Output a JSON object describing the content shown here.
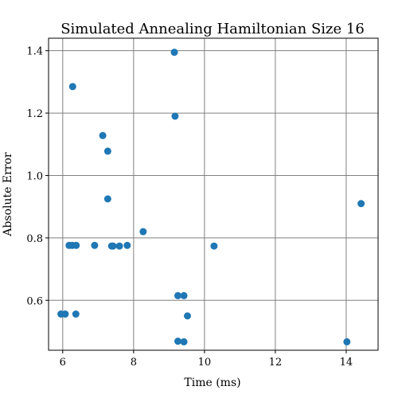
{
  "chart_data": {
    "type": "scatter",
    "title": "Simulated Annealing Hamiltonian Size 16",
    "xlabel": "Time (ms)",
    "ylabel": "Absolute Error",
    "xlim": [
      5.6,
      14.9
    ],
    "ylim": [
      0.44,
      1.44
    ],
    "xticks": [
      6,
      8,
      10,
      12,
      14
    ],
    "yticks": [
      0.6,
      0.8,
      1.0,
      1.2,
      1.4
    ],
    "xtick_labels": [
      "6",
      "8",
      "10",
      "12",
      "14"
    ],
    "ytick_labels": [
      "0.6",
      "0.8",
      "1.0",
      "1.2",
      "1.4"
    ],
    "grid": true,
    "marker_color": "#1f77b4",
    "points": [
      {
        "x": 9.15,
        "y": 1.395
      },
      {
        "x": 6.28,
        "y": 1.285
      },
      {
        "x": 9.17,
        "y": 1.19
      },
      {
        "x": 7.13,
        "y": 1.128
      },
      {
        "x": 7.27,
        "y": 1.078
      },
      {
        "x": 7.27,
        "y": 0.925
      },
      {
        "x": 14.42,
        "y": 0.91
      },
      {
        "x": 8.27,
        "y": 0.82
      },
      {
        "x": 6.18,
        "y": 0.776
      },
      {
        "x": 6.27,
        "y": 0.776
      },
      {
        "x": 6.38,
        "y": 0.776
      },
      {
        "x": 6.9,
        "y": 0.776
      },
      {
        "x": 7.38,
        "y": 0.774
      },
      {
        "x": 7.42,
        "y": 0.774
      },
      {
        "x": 7.6,
        "y": 0.774
      },
      {
        "x": 7.82,
        "y": 0.776
      },
      {
        "x": 10.27,
        "y": 0.774
      },
      {
        "x": 9.25,
        "y": 0.615
      },
      {
        "x": 9.42,
        "y": 0.615
      },
      {
        "x": 5.95,
        "y": 0.556
      },
      {
        "x": 6.07,
        "y": 0.556
      },
      {
        "x": 6.37,
        "y": 0.556
      },
      {
        "x": 9.52,
        "y": 0.55
      },
      {
        "x": 9.25,
        "y": 0.469
      },
      {
        "x": 9.42,
        "y": 0.467
      },
      {
        "x": 14.02,
        "y": 0.467
      }
    ]
  }
}
